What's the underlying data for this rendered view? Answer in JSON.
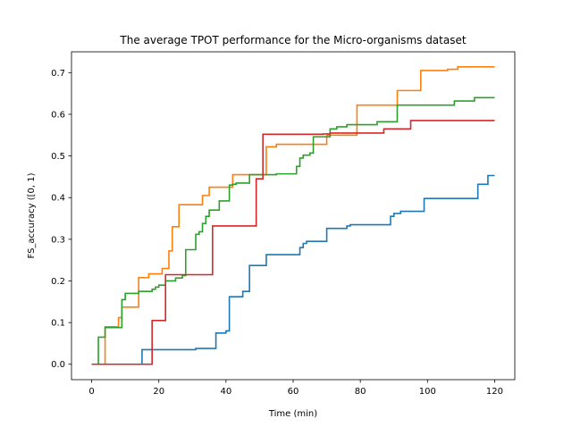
{
  "chart_data": {
    "type": "line",
    "step": true,
    "title": "The average TPOT performance for the Micro-organisms dataset",
    "xlabel": "Time (min)",
    "ylabel": "FS_accuracy ([0, 1)",
    "xlim": [
      -6,
      126
    ],
    "ylim": [
      -0.037,
      0.75
    ],
    "xticks": [
      0,
      20,
      40,
      60,
      80,
      100,
      120
    ],
    "yticks": [
      0.0,
      0.1,
      0.2,
      0.3,
      0.4,
      0.5,
      0.6,
      0.7
    ],
    "ytick_labels": [
      "0.0",
      "0.1",
      "0.2",
      "0.3",
      "0.4",
      "0.5",
      "0.6",
      "0.7"
    ],
    "legend": false,
    "grid": false,
    "series": [
      {
        "color": "#1f77b4",
        "points": [
          [
            0,
            0
          ],
          [
            15,
            0
          ],
          [
            15,
            0.035
          ],
          [
            31,
            0.035
          ],
          [
            31,
            0.038
          ],
          [
            37,
            0.038
          ],
          [
            37,
            0.075
          ],
          [
            40,
            0.075
          ],
          [
            40,
            0.08
          ],
          [
            41,
            0.08
          ],
          [
            41,
            0.162
          ],
          [
            45,
            0.162
          ],
          [
            45,
            0.175
          ],
          [
            47,
            0.175
          ],
          [
            47,
            0.237
          ],
          [
            52,
            0.237
          ],
          [
            52,
            0.263
          ],
          [
            62,
            0.263
          ],
          [
            62,
            0.28
          ],
          [
            63,
            0.28
          ],
          [
            63,
            0.29
          ],
          [
            64,
            0.29
          ],
          [
            64,
            0.295
          ],
          [
            70,
            0.295
          ],
          [
            70,
            0.326
          ],
          [
            76,
            0.326
          ],
          [
            76,
            0.332
          ],
          [
            77,
            0.332
          ],
          [
            77,
            0.335
          ],
          [
            89,
            0.335
          ],
          [
            89,
            0.355
          ],
          [
            90,
            0.355
          ],
          [
            90,
            0.362
          ],
          [
            92,
            0.362
          ],
          [
            92,
            0.367
          ],
          [
            99,
            0.367
          ],
          [
            99,
            0.398
          ],
          [
            115,
            0.398
          ],
          [
            115,
            0.432
          ],
          [
            118,
            0.432
          ],
          [
            118,
            0.453
          ],
          [
            120,
            0.453
          ]
        ]
      },
      {
        "color": "#ff7f0e",
        "points": [
          [
            0,
            0
          ],
          [
            4,
            0
          ],
          [
            4,
            0.09
          ],
          [
            8,
            0.09
          ],
          [
            8,
            0.112
          ],
          [
            9,
            0.112
          ],
          [
            9,
            0.137
          ],
          [
            14,
            0.137
          ],
          [
            14,
            0.208
          ],
          [
            17,
            0.208
          ],
          [
            17,
            0.217
          ],
          [
            21,
            0.217
          ],
          [
            21,
            0.23
          ],
          [
            23,
            0.23
          ],
          [
            23,
            0.272
          ],
          [
            24,
            0.272
          ],
          [
            24,
            0.33
          ],
          [
            26,
            0.33
          ],
          [
            26,
            0.383
          ],
          [
            33,
            0.383
          ],
          [
            33,
            0.405
          ],
          [
            35,
            0.405
          ],
          [
            35,
            0.425
          ],
          [
            42,
            0.425
          ],
          [
            42,
            0.455
          ],
          [
            52,
            0.455
          ],
          [
            52,
            0.522
          ],
          [
            55,
            0.522
          ],
          [
            55,
            0.528
          ],
          [
            70,
            0.528
          ],
          [
            70,
            0.55
          ],
          [
            79,
            0.55
          ],
          [
            79,
            0.622
          ],
          [
            91,
            0.622
          ],
          [
            91,
            0.657
          ],
          [
            98,
            0.657
          ],
          [
            98,
            0.705
          ],
          [
            106,
            0.705
          ],
          [
            106,
            0.708
          ],
          [
            109,
            0.708
          ],
          [
            109,
            0.714
          ],
          [
            120,
            0.714
          ]
        ]
      },
      {
        "color": "#2ca02c",
        "points": [
          [
            0,
            0
          ],
          [
            2,
            0
          ],
          [
            2,
            0.065
          ],
          [
            4,
            0.065
          ],
          [
            4,
            0.088
          ],
          [
            9,
            0.088
          ],
          [
            9,
            0.155
          ],
          [
            10,
            0.155
          ],
          [
            10,
            0.17
          ],
          [
            14,
            0.17
          ],
          [
            14,
            0.175
          ],
          [
            18,
            0.175
          ],
          [
            18,
            0.18
          ],
          [
            19,
            0.18
          ],
          [
            19,
            0.185
          ],
          [
            20,
            0.185
          ],
          [
            20,
            0.19
          ],
          [
            22,
            0.19
          ],
          [
            22,
            0.2
          ],
          [
            25,
            0.2
          ],
          [
            25,
            0.207
          ],
          [
            27,
            0.207
          ],
          [
            27,
            0.213
          ],
          [
            28,
            0.213
          ],
          [
            28,
            0.275
          ],
          [
            31,
            0.275
          ],
          [
            31,
            0.312
          ],
          [
            32,
            0.312
          ],
          [
            32,
            0.318
          ],
          [
            33,
            0.318
          ],
          [
            33,
            0.338
          ],
          [
            34,
            0.338
          ],
          [
            34,
            0.355
          ],
          [
            35,
            0.355
          ],
          [
            35,
            0.37
          ],
          [
            38,
            0.37
          ],
          [
            38,
            0.392
          ],
          [
            41,
            0.392
          ],
          [
            41,
            0.43
          ],
          [
            42,
            0.43
          ],
          [
            42,
            0.432
          ],
          [
            43,
            0.432
          ],
          [
            43,
            0.435
          ],
          [
            47,
            0.435
          ],
          [
            47,
            0.455
          ],
          [
            55,
            0.455
          ],
          [
            55,
            0.457
          ],
          [
            61,
            0.457
          ],
          [
            61,
            0.475
          ],
          [
            62,
            0.475
          ],
          [
            62,
            0.495
          ],
          [
            63,
            0.495
          ],
          [
            63,
            0.502
          ],
          [
            65,
            0.502
          ],
          [
            65,
            0.507
          ],
          [
            66,
            0.507
          ],
          [
            66,
            0.546
          ],
          [
            71,
            0.546
          ],
          [
            71,
            0.565
          ],
          [
            73,
            0.565
          ],
          [
            73,
            0.57
          ],
          [
            76,
            0.57
          ],
          [
            76,
            0.575
          ],
          [
            85,
            0.575
          ],
          [
            85,
            0.582
          ],
          [
            91,
            0.582
          ],
          [
            91,
            0.622
          ],
          [
            108,
            0.622
          ],
          [
            108,
            0.632
          ],
          [
            114,
            0.632
          ],
          [
            114,
            0.64
          ],
          [
            120,
            0.64
          ]
        ]
      },
      {
        "color": "#d62728",
        "points": [
          [
            0,
            0
          ],
          [
            18,
            0
          ],
          [
            18,
            0.105
          ],
          [
            22,
            0.105
          ],
          [
            22,
            0.215
          ],
          [
            36,
            0.215
          ],
          [
            36,
            0.332
          ],
          [
            49,
            0.332
          ],
          [
            49,
            0.445
          ],
          [
            51,
            0.445
          ],
          [
            51,
            0.552
          ],
          [
            69,
            0.552
          ],
          [
            69,
            0.553
          ],
          [
            71,
            0.553
          ],
          [
            71,
            0.555
          ],
          [
            87,
            0.555
          ],
          [
            87,
            0.565
          ],
          [
            95,
            0.565
          ],
          [
            95,
            0.585
          ],
          [
            120,
            0.585
          ]
        ]
      }
    ]
  }
}
